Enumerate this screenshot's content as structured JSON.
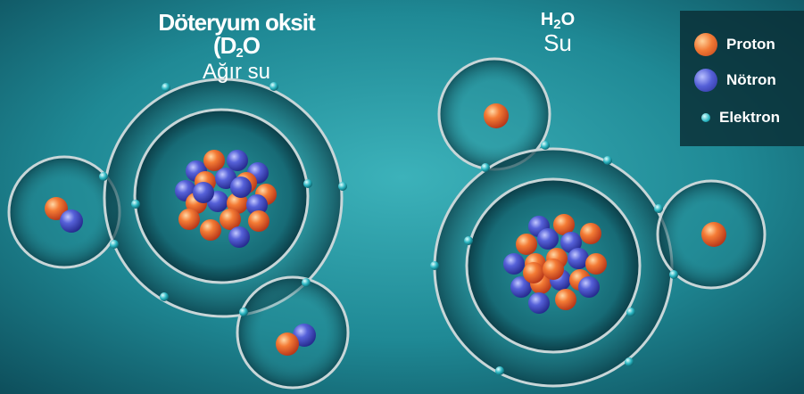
{
  "molecules": {
    "heavy_water": {
      "formula_prefix": "Döteryum oksit (D",
      "formula_sub": "2",
      "formula_suffix": "O",
      "name": "Ağır su"
    },
    "water": {
      "formula_prefix": "H",
      "formula_sub": "2",
      "formula_suffix": "O",
      "name": "Su"
    }
  },
  "legend": {
    "proton": "Proton",
    "neutron": "Nötron",
    "electron": "Elektron"
  },
  "colors": {
    "background": "#2a9aa5",
    "proton": "#f27a35",
    "neutron": "#5560d8",
    "electron": "#2bb6c2"
  }
}
